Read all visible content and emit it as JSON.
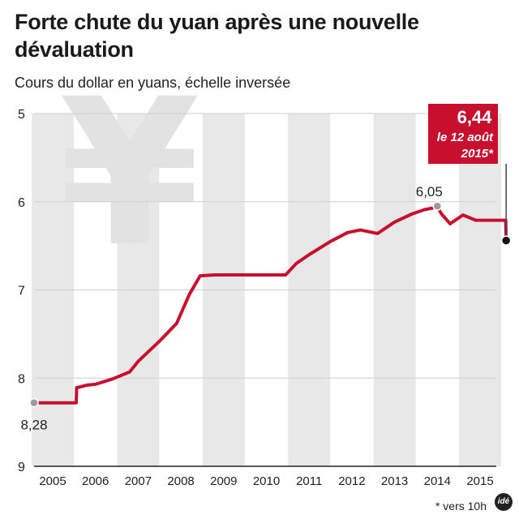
{
  "header": {
    "title": "Forte chute du yuan après une nouvelle dévaluation",
    "subtitle": "Cours du dollar en yuans, échelle inversée"
  },
  "footer": {
    "note": "* vers 10h",
    "logo": "idé"
  },
  "chart_data": {
    "type": "line",
    "title": "Forte chute du yuan après une nouvelle dévaluation",
    "subtitle": "Cours du dollar en yuans, échelle inversée",
    "xlabel": "",
    "ylabel": "",
    "y_inverted": true,
    "ylim": [
      5,
      9
    ],
    "xlim": [
      2004.95,
      2015.65
    ],
    "y_ticks": [
      "5",
      "6",
      "7",
      "8",
      "9"
    ],
    "x_ticks": [
      "2005",
      "2006",
      "2007",
      "2008",
      "2009",
      "2010",
      "2011",
      "2012",
      "2013",
      "2014",
      "2015"
    ],
    "grid": true,
    "line_color": "#c8102e",
    "decor_icon": "yen-symbol",
    "series": [
      {
        "values": [
          [
            2004.95,
            8.28
          ],
          [
            2005.55,
            8.28
          ],
          [
            2005.56,
            8.11
          ],
          [
            2005.8,
            8.08
          ],
          [
            2006.0,
            8.07
          ],
          [
            2006.4,
            8.01
          ],
          [
            2006.8,
            7.93
          ],
          [
            2007.0,
            7.81
          ],
          [
            2007.5,
            7.58
          ],
          [
            2007.9,
            7.38
          ],
          [
            2008.2,
            7.05
          ],
          [
            2008.45,
            6.84
          ],
          [
            2008.8,
            6.83
          ],
          [
            2009.5,
            6.83
          ],
          [
            2010.0,
            6.83
          ],
          [
            2010.45,
            6.83
          ],
          [
            2010.7,
            6.7
          ],
          [
            2011.0,
            6.6
          ],
          [
            2011.5,
            6.45
          ],
          [
            2011.9,
            6.35
          ],
          [
            2012.2,
            6.32
          ],
          [
            2012.6,
            6.36
          ],
          [
            2013.0,
            6.23
          ],
          [
            2013.4,
            6.14
          ],
          [
            2013.7,
            6.09
          ],
          [
            2013.9,
            6.07
          ],
          [
            2014.0,
            6.06
          ],
          [
            2014.1,
            6.14
          ],
          [
            2014.3,
            6.25
          ],
          [
            2014.6,
            6.15
          ],
          [
            2014.9,
            6.21
          ],
          [
            2015.0,
            6.21
          ],
          [
            2015.5,
            6.21
          ],
          [
            2015.6,
            6.21
          ],
          [
            2015.61,
            6.44
          ]
        ]
      }
    ],
    "annotations": [
      {
        "label": "8,28",
        "x": 2004.95,
        "y": 8.28,
        "marker": "grey"
      },
      {
        "label": "6,05",
        "x": 2014.0,
        "y": 6.05,
        "marker": "grey"
      },
      {
        "label": "6,44",
        "sublabel_1": "le 12 août",
        "sublabel_2": "2015*",
        "x": 2015.61,
        "y": 6.44,
        "marker": "black",
        "box_color": "#c8102e"
      }
    ]
  }
}
